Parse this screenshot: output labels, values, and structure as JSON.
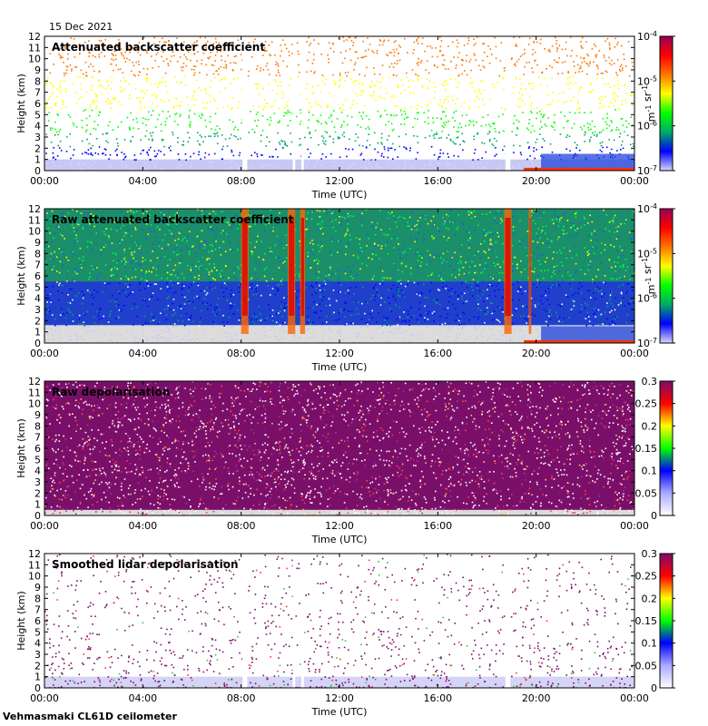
{
  "date_label": "15 Dec 2021",
  "footer_label": "Vehmasmaki CL61D ceilometer",
  "colors": {
    "background": "#ffffff",
    "near_surface": "#dcdcdc",
    "purple": "#7a0f6a",
    "backscatter_scale": [
      "#d8d8f8",
      "#0000ff",
      "#00aa66",
      "#00ff00",
      "#ffff00",
      "#ff7700",
      "#ff0000",
      "#990055"
    ],
    "depol_scale": [
      "#ffffff",
      "#aaaaff",
      "#0000ff",
      "#00ff00",
      "#ffff00",
      "#ff0000",
      "#7a0f6a"
    ]
  },
  "chart_data": [
    {
      "type": "heatmap",
      "title": "Attenuated backscatter coefficient",
      "xlabel": "Time (UTC)",
      "ylabel": "Height (km)",
      "x_ticks": [
        "00:00",
        "04:00",
        "08:00",
        "12:00",
        "16:00",
        "20:00",
        "00:00"
      ],
      "y_ticks": [
        "0",
        "1",
        "2",
        "3",
        "4",
        "5",
        "6",
        "7",
        "8",
        "9",
        "10",
        "11",
        "12"
      ],
      "ylim": [
        0,
        12
      ],
      "colorbar": {
        "scale": "log",
        "ticks": [
          "10-7",
          "10-6",
          "10-5",
          "10-4"
        ],
        "unit": "m-1 sr-1"
      },
      "gaps_hours": [
        [
          8.05,
          8.25
        ],
        [
          10.1,
          10.2
        ],
        [
          10.45,
          10.55
        ],
        [
          18.75,
          18.95
        ]
      ]
    },
    {
      "type": "heatmap",
      "title": "Raw attenuated backscatter coefficient",
      "xlabel": "Time (UTC)",
      "ylabel": "Height (km)",
      "x_ticks": [
        "00:00",
        "04:00",
        "08:00",
        "12:00",
        "16:00",
        "20:00",
        "00:00"
      ],
      "y_ticks": [
        "0",
        "1",
        "2",
        "3",
        "4",
        "5",
        "6",
        "7",
        "8",
        "9",
        "10",
        "11",
        "12"
      ],
      "ylim": [
        0,
        12
      ],
      "colorbar": {
        "scale": "log",
        "ticks": [
          "10-7",
          "10-6",
          "10-5",
          "10-4"
        ],
        "unit": "m-1 sr-1"
      },
      "high_signal_hours": [
        [
          8.0,
          8.3
        ],
        [
          9.9,
          10.2
        ],
        [
          10.4,
          10.6
        ],
        [
          18.7,
          19.0
        ],
        [
          19.7,
          19.8
        ]
      ]
    },
    {
      "type": "heatmap",
      "title": "Raw depolarisation",
      "xlabel": "Time (UTC)",
      "ylabel": "Height (km)",
      "x_ticks": [
        "00:00",
        "04:00",
        "08:00",
        "12:00",
        "16:00",
        "20:00",
        "00:00"
      ],
      "y_ticks": [
        "0",
        "1",
        "2",
        "3",
        "4",
        "5",
        "6",
        "7",
        "8",
        "9",
        "10",
        "11",
        "12"
      ],
      "ylim": [
        0,
        12
      ],
      "colorbar": {
        "scale": "linear",
        "ticks": [
          "0",
          "0.05",
          "0.1",
          "0.15",
          "0.2",
          "0.25",
          "0.3"
        ],
        "range": [
          0,
          0.3
        ]
      }
    },
    {
      "type": "heatmap",
      "title": "Smoothed lidar depolarisation",
      "xlabel": "Time (UTC)",
      "ylabel": "Height (km)",
      "x_ticks": [
        "00:00",
        "04:00",
        "08:00",
        "12:00",
        "16:00",
        "20:00",
        "00:00"
      ],
      "y_ticks": [
        "0",
        "1",
        "2",
        "3",
        "4",
        "5",
        "6",
        "7",
        "8",
        "9",
        "10",
        "11",
        "12"
      ],
      "ylim": [
        0,
        12
      ],
      "colorbar": {
        "scale": "linear",
        "ticks": [
          "0",
          "0.05",
          "0.1",
          "0.15",
          "0.2",
          "0.25",
          "0.3"
        ],
        "range": [
          0,
          0.3
        ]
      },
      "gaps_hours": [
        [
          8.05,
          8.25
        ],
        [
          10.1,
          10.2
        ],
        [
          10.45,
          10.55
        ],
        [
          18.75,
          18.95
        ]
      ]
    }
  ]
}
